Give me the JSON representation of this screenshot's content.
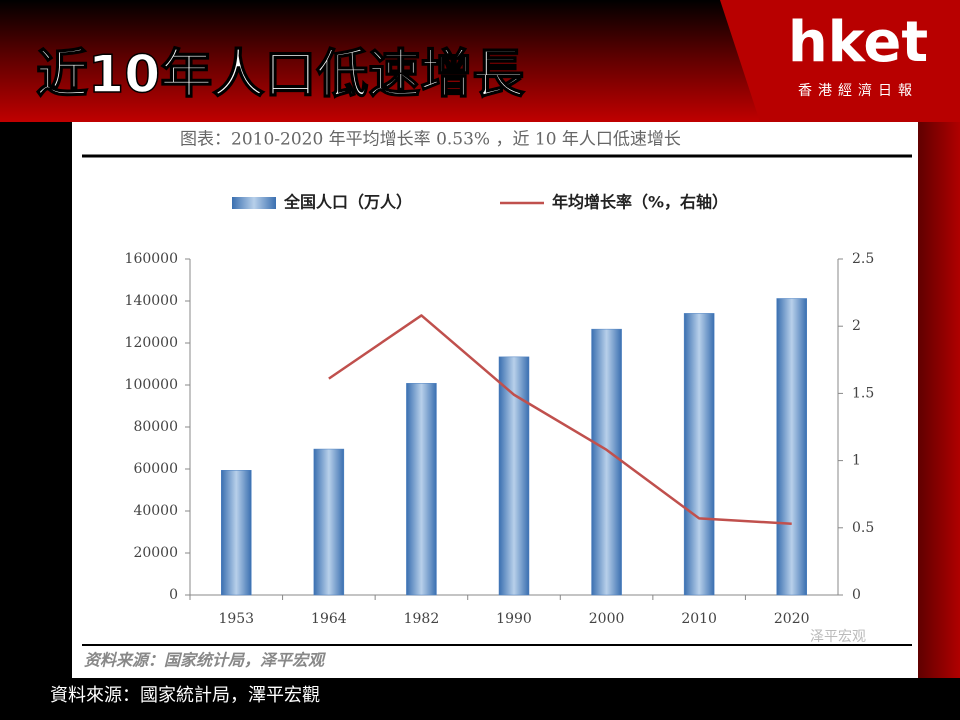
{
  "header": {
    "title": "近10年人口低速增長"
  },
  "logo": {
    "brand": "hket",
    "subtitle": "香港經濟日報"
  },
  "chart_data": {
    "type": "bar",
    "title": "图表：2010-2020 年平均增长率 0.53% ，近 10 年人口低速增长",
    "categories": [
      "1953",
      "1964",
      "1982",
      "1990",
      "2000",
      "2010",
      "2020"
    ],
    "series": [
      {
        "name": "全国人口（万人）",
        "type": "bar",
        "color": "#4a7fc0",
        "values": [
          59400,
          69500,
          100800,
          113400,
          126600,
          134100,
          141200
        ]
      },
      {
        "name": "年均增长率（%，右轴）",
        "type": "line",
        "axis": "y2",
        "color": "#c0504d",
        "values": [
          null,
          1.61,
          2.08,
          1.49,
          1.08,
          0.57,
          0.53
        ]
      }
    ],
    "ylim": [
      0,
      160000
    ],
    "yticks": [
      0,
      20000,
      40000,
      60000,
      80000,
      100000,
      120000,
      140000,
      160000
    ],
    "y2lim": [
      0,
      2.5
    ],
    "y2ticks": [
      0,
      0.5,
      1,
      1.5,
      2,
      2.5
    ],
    "source": "资料来源：国家统计局，泽平宏观",
    "watermark": "泽平宏观"
  },
  "footer": {
    "source": "資料來源：國家統計局，澤平宏觀"
  }
}
